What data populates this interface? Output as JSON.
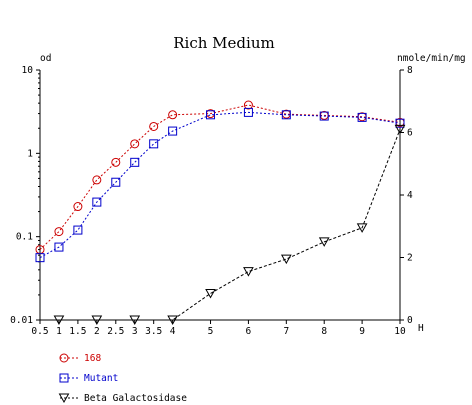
{
  "chart_data": {
    "type": "line",
    "title": "Rich Medium",
    "xlabel": "H",
    "ylabel_left": "od",
    "ylabel_right": "nmole/min/mg",
    "x_tick_labels": [
      "0.5",
      "1",
      "1.5",
      "2",
      "2.5",
      "3",
      "3.5",
      "4",
      "5",
      "6",
      "7",
      "8",
      "9",
      "10"
    ],
    "y_left": {
      "scale": "log",
      "lim": [
        0.01,
        10
      ],
      "tick_labels": [
        "0.01",
        "0.1",
        "1",
        "10"
      ]
    },
    "y_right": {
      "scale": "linear",
      "lim": [
        0,
        8
      ],
      "tick_labels": [
        "0",
        "2",
        "4",
        "6",
        "8"
      ]
    },
    "legend_position": "bottom-left",
    "series": [
      {
        "name": "168",
        "axis": "left",
        "marker": "circle",
        "color": "#cc0000",
        "x": [
          0.5,
          1,
          1.5,
          2,
          2.5,
          3,
          3.5,
          4,
          5,
          6,
          7,
          8,
          9,
          10
        ],
        "y": [
          0.07,
          0.115,
          0.23,
          0.48,
          0.78,
          1.3,
          2.1,
          2.9,
          3.0,
          3.8,
          2.95,
          2.85,
          2.75,
          2.35
        ]
      },
      {
        "name": "Mutant",
        "axis": "left",
        "marker": "square",
        "color": "#0000cc",
        "x": [
          0.5,
          1,
          1.5,
          2,
          2.5,
          3,
          3.5,
          4,
          5,
          6,
          7,
          8,
          9,
          10
        ],
        "y": [
          0.056,
          0.075,
          0.12,
          0.26,
          0.45,
          0.78,
          1.3,
          1.85,
          2.9,
          3.1,
          2.9,
          2.8,
          2.7,
          2.3
        ]
      },
      {
        "name": "Beta Galactosidase",
        "axis": "right",
        "marker": "triangle-down",
        "color": "#000000",
        "x": [
          1,
          2,
          3,
          4,
          5,
          6,
          7,
          8,
          9,
          10
        ],
        "y": [
          0,
          0,
          0,
          0,
          0.85,
          1.55,
          1.95,
          2.5,
          2.95,
          6.1
        ]
      }
    ]
  }
}
